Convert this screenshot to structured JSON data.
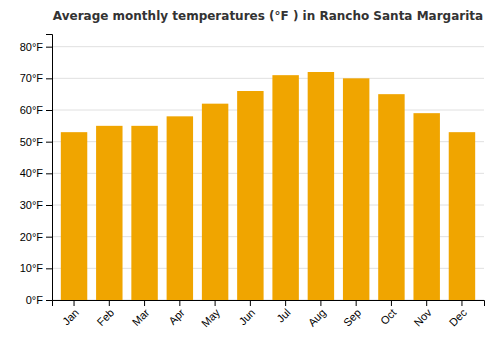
{
  "chart_data": {
    "type": "bar",
    "title": "Average monthly temperatures (°F ) in Rancho Santa Margarita",
    "categories": [
      "Jan",
      "Feb",
      "Mar",
      "Apr",
      "May",
      "Jun",
      "Jul",
      "Aug",
      "Sep",
      "Oct",
      "Nov",
      "Dec"
    ],
    "values": [
      53,
      55,
      55,
      58,
      62,
      66,
      71,
      72,
      70,
      65,
      59,
      53
    ],
    "color": "#F0A500",
    "ylim": [
      0,
      84
    ],
    "yticks": [
      {
        "value": 0,
        "label": "0°F"
      },
      {
        "value": 10,
        "label": "10°F"
      },
      {
        "value": 20,
        "label": "20°F"
      },
      {
        "value": 30,
        "label": "30°F"
      },
      {
        "value": 40,
        "label": "40°F"
      },
      {
        "value": 50,
        "label": "50°F"
      },
      {
        "value": 60,
        "label": "60°F"
      },
      {
        "value": 70,
        "label": "70°F"
      },
      {
        "value": 80,
        "label": "80°F"
      }
    ],
    "grid": true
  }
}
